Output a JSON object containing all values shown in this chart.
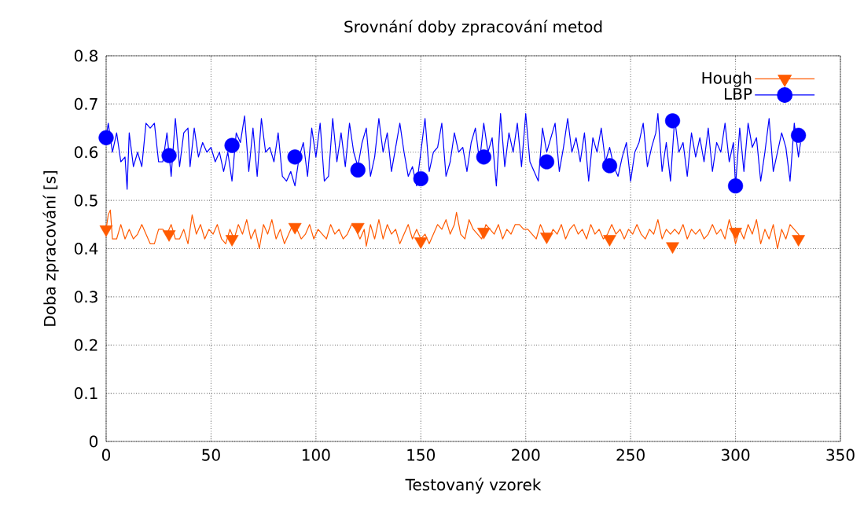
{
  "chart_data": {
    "type": "line",
    "title": "Srovnání doby zpracování metod",
    "xlabel": "Testovaný vzorek",
    "ylabel": "Doba zpracování [s]",
    "xlim": [
      0,
      350
    ],
    "xticks": [
      0,
      50,
      100,
      150,
      200,
      250,
      300,
      350
    ],
    "ylim": [
      0,
      0.8
    ],
    "yticks": [
      0,
      0.1,
      0.2,
      0.3,
      0.4,
      0.5,
      0.6,
      0.7,
      0.8
    ],
    "grid": true,
    "legend": "top right",
    "series": [
      {
        "name": "Hough",
        "color": "#ff5a00",
        "x": [
          0,
          1,
          2,
          3,
          5,
          7,
          9,
          11,
          13,
          15,
          17,
          19,
          21,
          23,
          25,
          27,
          29,
          31,
          33,
          35,
          37,
          39,
          41,
          43,
          45,
          47,
          49,
          51,
          53,
          55,
          57,
          59,
          61,
          63,
          65,
          67,
          69,
          71,
          73,
          75,
          77,
          79,
          81,
          83,
          85,
          87,
          89,
          91,
          93,
          95,
          97,
          99,
          101,
          103,
          105,
          107,
          109,
          111,
          113,
          115,
          117,
          119,
          121,
          123,
          124,
          126,
          128,
          130,
          132,
          134,
          136,
          138,
          140,
          142,
          144,
          146,
          148,
          150,
          152,
          154,
          156,
          158,
          160,
          162,
          164,
          166,
          167,
          169,
          171,
          173,
          175,
          177,
          179,
          181,
          183,
          185,
          187,
          189,
          191,
          193,
          195,
          197,
          199,
          201,
          203,
          205,
          207,
          209,
          211,
          213,
          215,
          217,
          219,
          221,
          223,
          225,
          227,
          229,
          231,
          233,
          235,
          237,
          239,
          241,
          243,
          245,
          247,
          249,
          251,
          253,
          255,
          257,
          259,
          261,
          263,
          265,
          267,
          269,
          271,
          273,
          275,
          277,
          279,
          281,
          283,
          285,
          287,
          289,
          291,
          293,
          295,
          297,
          299,
          300,
          302,
          304,
          306,
          308,
          310,
          312,
          314,
          316,
          318,
          320,
          322,
          324,
          326,
          328,
          330,
          331
        ],
        "values": [
          0.44,
          0.47,
          0.48,
          0.42,
          0.42,
          0.45,
          0.42,
          0.44,
          0.42,
          0.43,
          0.45,
          0.43,
          0.41,
          0.41,
          0.44,
          0.44,
          0.43,
          0.45,
          0.42,
          0.42,
          0.44,
          0.41,
          0.47,
          0.43,
          0.45,
          0.42,
          0.44,
          0.43,
          0.45,
          0.42,
          0.41,
          0.44,
          0.42,
          0.45,
          0.43,
          0.46,
          0.42,
          0.44,
          0.4,
          0.45,
          0.43,
          0.46,
          0.42,
          0.44,
          0.41,
          0.43,
          0.45,
          0.44,
          0.42,
          0.43,
          0.45,
          0.42,
          0.44,
          0.43,
          0.42,
          0.45,
          0.43,
          0.44,
          0.42,
          0.43,
          0.45,
          0.44,
          0.42,
          0.44,
          0.405,
          0.45,
          0.42,
          0.46,
          0.42,
          0.45,
          0.43,
          0.44,
          0.41,
          0.43,
          0.45,
          0.42,
          0.44,
          0.42,
          0.43,
          0.41,
          0.43,
          0.45,
          0.44,
          0.46,
          0.43,
          0.45,
          0.475,
          0.43,
          0.42,
          0.46,
          0.44,
          0.43,
          0.42,
          0.45,
          0.44,
          0.43,
          0.45,
          0.42,
          0.44,
          0.43,
          0.45,
          0.45,
          0.44,
          0.44,
          0.43,
          0.42,
          0.45,
          0.43,
          0.42,
          0.44,
          0.43,
          0.45,
          0.42,
          0.44,
          0.45,
          0.43,
          0.44,
          0.42,
          0.45,
          0.43,
          0.44,
          0.42,
          0.43,
          0.45,
          0.43,
          0.44,
          0.42,
          0.44,
          0.43,
          0.45,
          0.43,
          0.42,
          0.44,
          0.43,
          0.46,
          0.42,
          0.44,
          0.43,
          0.44,
          0.43,
          0.45,
          0.42,
          0.44,
          0.43,
          0.44,
          0.42,
          0.43,
          0.45,
          0.43,
          0.44,
          0.42,
          0.46,
          0.43,
          0.41,
          0.44,
          0.42,
          0.45,
          0.43,
          0.46,
          0.41,
          0.44,
          0.42,
          0.45,
          0.4,
          0.44,
          0.42,
          0.45,
          0.44,
          0.43,
          0.42
        ]
      },
      {
        "name": "LBP",
        "color": "#0000ff",
        "x": [
          0,
          1,
          3,
          5,
          7,
          9,
          10,
          11,
          13,
          15,
          17,
          19,
          21,
          23,
          25,
          27,
          29,
          31,
          33,
          35,
          37,
          39,
          40,
          42,
          44,
          46,
          48,
          50,
          52,
          54,
          56,
          58,
          60,
          62,
          64,
          66,
          68,
          70,
          72,
          74,
          76,
          78,
          80,
          82,
          84,
          86,
          88,
          90,
          92,
          94,
          96,
          98,
          100,
          102,
          104,
          106,
          108,
          110,
          112,
          114,
          116,
          118,
          120,
          122,
          124,
          126,
          128,
          130,
          132,
          134,
          136,
          138,
          140,
          142,
          144,
          146,
          148,
          150,
          152,
          154,
          156,
          158,
          160,
          162,
          164,
          166,
          168,
          170,
          172,
          174,
          176,
          178,
          180,
          182,
          184,
          186,
          188,
          190,
          192,
          194,
          196,
          198,
          200,
          202,
          204,
          206,
          208,
          210,
          212,
          214,
          216,
          218,
          220,
          222,
          224,
          226,
          228,
          230,
          232,
          234,
          236,
          238,
          240,
          242,
          244,
          246,
          248,
          250,
          252,
          254,
          256,
          258,
          260,
          262,
          263,
          265,
          267,
          269,
          271,
          273,
          275,
          277,
          279,
          281,
          283,
          285,
          287,
          289,
          291,
          293,
          295,
          297,
          299,
          300,
          302,
          304,
          306,
          308,
          310,
          312,
          314,
          316,
          318,
          320,
          322,
          324,
          326,
          328,
          330,
          331
        ],
        "values": [
          0.63,
          0.66,
          0.6,
          0.64,
          0.58,
          0.59,
          0.523,
          0.64,
          0.57,
          0.6,
          0.57,
          0.66,
          0.65,
          0.66,
          0.58,
          0.58,
          0.64,
          0.55,
          0.67,
          0.57,
          0.64,
          0.65,
          0.57,
          0.65,
          0.59,
          0.62,
          0.6,
          0.61,
          0.58,
          0.6,
          0.56,
          0.6,
          0.54,
          0.64,
          0.62,
          0.675,
          0.56,
          0.65,
          0.55,
          0.67,
          0.6,
          0.61,
          0.58,
          0.64,
          0.55,
          0.54,
          0.56,
          0.53,
          0.59,
          0.62,
          0.55,
          0.65,
          0.59,
          0.66,
          0.54,
          0.55,
          0.67,
          0.58,
          0.64,
          0.57,
          0.66,
          0.6,
          0.57,
          0.62,
          0.65,
          0.55,
          0.59,
          0.67,
          0.6,
          0.64,
          0.56,
          0.61,
          0.66,
          0.6,
          0.55,
          0.57,
          0.53,
          0.6,
          0.67,
          0.56,
          0.6,
          0.61,
          0.66,
          0.55,
          0.58,
          0.64,
          0.6,
          0.61,
          0.56,
          0.62,
          0.65,
          0.58,
          0.66,
          0.6,
          0.63,
          0.53,
          0.68,
          0.57,
          0.64,
          0.6,
          0.66,
          0.57,
          0.68,
          0.58,
          0.56,
          0.54,
          0.65,
          0.6,
          0.63,
          0.66,
          0.56,
          0.61,
          0.67,
          0.6,
          0.63,
          0.58,
          0.64,
          0.54,
          0.63,
          0.6,
          0.65,
          0.58,
          0.61,
          0.57,
          0.55,
          0.59,
          0.62,
          0.54,
          0.6,
          0.62,
          0.66,
          0.57,
          0.61,
          0.64,
          0.68,
          0.56,
          0.62,
          0.54,
          0.67,
          0.6,
          0.62,
          0.55,
          0.64,
          0.59,
          0.63,
          0.58,
          0.65,
          0.56,
          0.62,
          0.6,
          0.66,
          0.58,
          0.62,
          0.53,
          0.65,
          0.56,
          0.66,
          0.61,
          0.63,
          0.54,
          0.6,
          0.67,
          0.56,
          0.6,
          0.64,
          0.61,
          0.54,
          0.66,
          0.59,
          0.62
        ]
      },
      {
        "type": "scatter",
        "marker": "triangle",
        "color": "#ff5a00",
        "x": [
          0,
          30,
          60,
          90,
          120,
          150,
          180,
          210,
          240,
          270,
          300,
          330
        ],
        "values": [
          0.44,
          0.43,
          0.42,
          0.445,
          0.445,
          0.415,
          0.435,
          0.425,
          0.42,
          0.405,
          0.435,
          0.42
        ]
      },
      {
        "type": "scatter",
        "marker": "circle",
        "color": "#0000ff",
        "x": [
          0,
          30,
          60,
          90,
          120,
          150,
          180,
          210,
          240,
          270,
          300,
          330
        ],
        "values": [
          0.63,
          0.593,
          0.614,
          0.59,
          0.563,
          0.545,
          0.59,
          0.58,
          0.572,
          0.665,
          0.53,
          0.635
        ]
      }
    ]
  }
}
